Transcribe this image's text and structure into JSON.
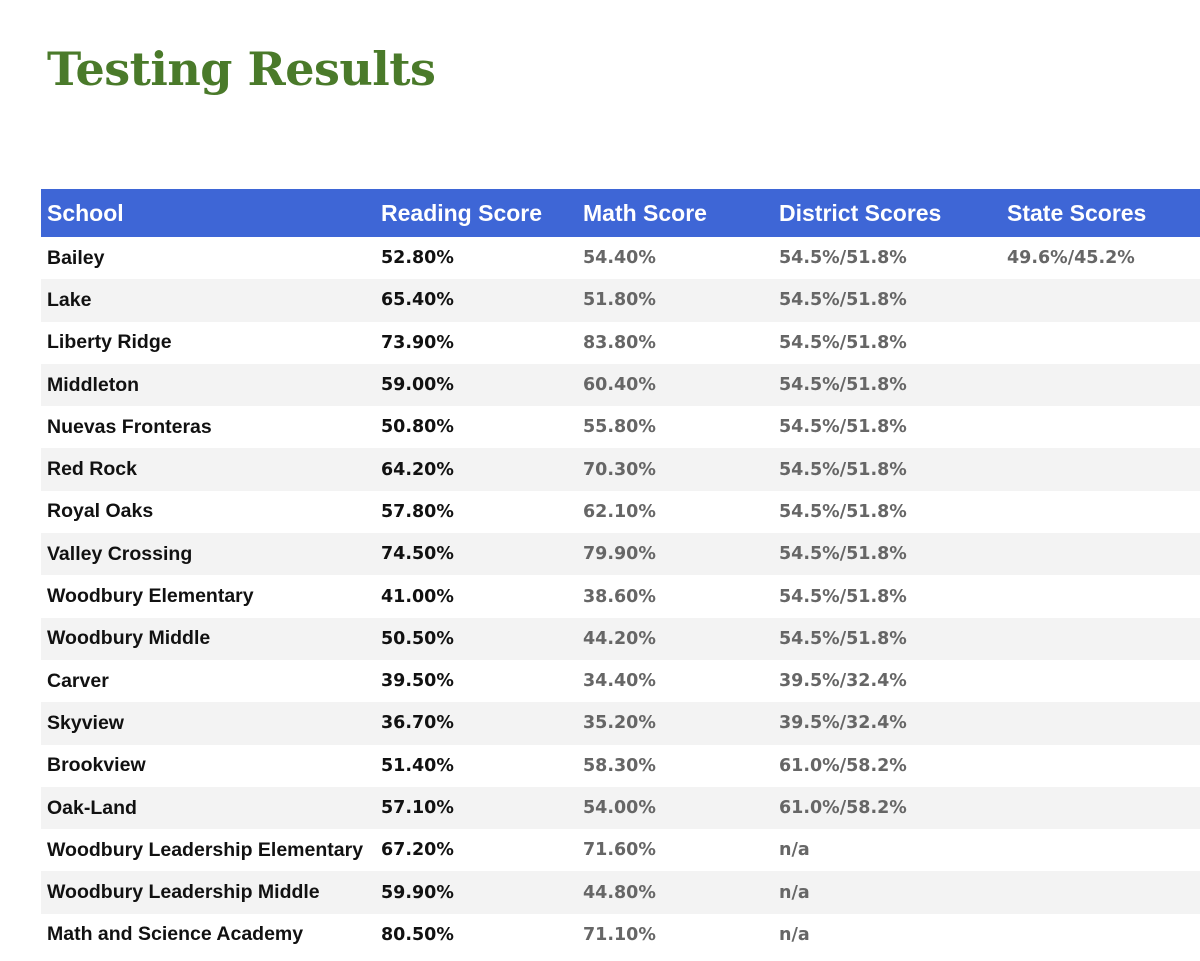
{
  "title": "Testing Results",
  "colors": {
    "title": "#4a7a2a",
    "header_bg": "#3e66d6",
    "header_text": "#ffffff",
    "row_alt_bg": "#f3f3f3",
    "muted_text": "#666666"
  },
  "table": {
    "headers": [
      "School",
      "Reading Score",
      "Math Score",
      "District Scores",
      "State Scores"
    ],
    "rows": [
      {
        "school": "Bailey",
        "reading": "52.80%",
        "math": "54.40%",
        "district": "54.5%/51.8%",
        "state": "49.6%/45.2%"
      },
      {
        "school": "Lake",
        "reading": "65.40%",
        "math": "51.80%",
        "district": "54.5%/51.8%",
        "state": ""
      },
      {
        "school": "Liberty Ridge",
        "reading": "73.90%",
        "math": "83.80%",
        "district": "54.5%/51.8%",
        "state": ""
      },
      {
        "school": "Middleton",
        "reading": "59.00%",
        "math": "60.40%",
        "district": "54.5%/51.8%",
        "state": ""
      },
      {
        "school": "Nuevas Fronteras",
        "reading": "50.80%",
        "math": "55.80%",
        "district": "54.5%/51.8%",
        "state": ""
      },
      {
        "school": "Red Rock",
        "reading": "64.20%",
        "math": "70.30%",
        "district": "54.5%/51.8%",
        "state": ""
      },
      {
        "school": "Royal Oaks",
        "reading": "57.80%",
        "math": "62.10%",
        "district": "54.5%/51.8%",
        "state": ""
      },
      {
        "school": "Valley Crossing",
        "reading": "74.50%",
        "math": "79.90%",
        "district": "54.5%/51.8%",
        "state": ""
      },
      {
        "school": "Woodbury Elementary",
        "reading": "41.00%",
        "math": "38.60%",
        "district": "54.5%/51.8%",
        "state": ""
      },
      {
        "school": "Woodbury Middle",
        "reading": "50.50%",
        "math": "44.20%",
        "district": "54.5%/51.8%",
        "state": ""
      },
      {
        "school": "Carver",
        "reading": "39.50%",
        "math": "34.40%",
        "district": "39.5%/32.4%",
        "state": ""
      },
      {
        "school": "Skyview",
        "reading": "36.70%",
        "math": "35.20%",
        "district": "39.5%/32.4%",
        "state": ""
      },
      {
        "school": "Brookview",
        "reading": "51.40%",
        "math": "58.30%",
        "district": "61.0%/58.2%",
        "state": ""
      },
      {
        "school": "Oak-Land",
        "reading": "57.10%",
        "math": "54.00%",
        "district": "61.0%/58.2%",
        "state": ""
      },
      {
        "school": "Woodbury Leadership Elementary",
        "reading": "67.20%",
        "math": "71.60%",
        "district": "n/a",
        "state": ""
      },
      {
        "school": "Woodbury Leadership Middle",
        "reading": "59.90%",
        "math": "44.80%",
        "district": "n/a",
        "state": ""
      },
      {
        "school": "Math and Science Academy",
        "reading": "80.50%",
        "math": "71.10%",
        "district": "n/a",
        "state": ""
      }
    ]
  }
}
